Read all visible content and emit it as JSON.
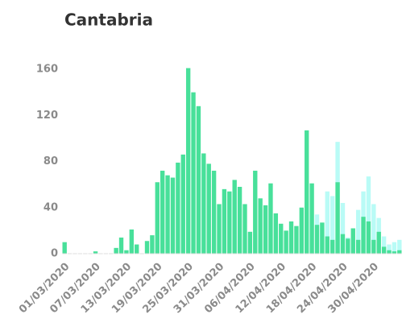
{
  "chart_data": {
    "type": "bar",
    "title": "Cantabria",
    "categories": [
      "01/03/2020",
      null,
      null,
      null,
      null,
      null,
      "07/03/2020",
      null,
      null,
      null,
      null,
      null,
      "13/03/2020",
      null,
      null,
      null,
      null,
      null,
      "19/03/2020",
      null,
      null,
      null,
      null,
      null,
      "25/03/2020",
      null,
      null,
      null,
      null,
      null,
      "31/03/2020",
      null,
      null,
      null,
      null,
      null,
      "06/04/2020",
      null,
      null,
      null,
      null,
      null,
      "12/04/2020",
      null,
      null,
      null,
      null,
      null,
      "18/04/2020",
      null,
      null,
      null,
      null,
      null,
      "24/04/2020",
      null,
      null,
      null,
      null,
      null,
      "30/04/2020",
      null,
      null,
      null,
      null,
      null
    ],
    "series": [
      {
        "color": "#b9fbf6",
        "values": [
          null,
          null,
          null,
          null,
          null,
          null,
          null,
          null,
          null,
          null,
          null,
          null,
          null,
          null,
          null,
          null,
          null,
          null,
          null,
          null,
          null,
          null,
          null,
          null,
          null,
          null,
          null,
          null,
          null,
          null,
          null,
          null,
          null,
          null,
          null,
          null,
          null,
          null,
          null,
          null,
          null,
          null,
          null,
          null,
          null,
          null,
          null,
          null,
          null,
          34,
          22,
          54,
          50,
          97,
          44,
          14,
          22,
          38,
          54,
          67,
          43,
          31,
          15,
          8,
          10,
          12
        ]
      },
      {
        "color": "#48e09a",
        "values": [
          10,
          0,
          0,
          0,
          0,
          0,
          2,
          0,
          0,
          0,
          5,
          14,
          3,
          21,
          8,
          0,
          11,
          16,
          62,
          72,
          68,
          66,
          79,
          86,
          161,
          140,
          128,
          87,
          78,
          72,
          43,
          56,
          54,
          64,
          58,
          43,
          19,
          72,
          48,
          42,
          61,
          35,
          26,
          20,
          28,
          24,
          40,
          107,
          61,
          25,
          27,
          15,
          12,
          62,
          17,
          13,
          22,
          12,
          32,
          28,
          12,
          19,
          6,
          3,
          2,
          3
        ]
      }
    ],
    "ylim": [
      0,
      170
    ],
    "yticks": [
      0,
      40,
      80,
      120,
      160
    ]
  }
}
